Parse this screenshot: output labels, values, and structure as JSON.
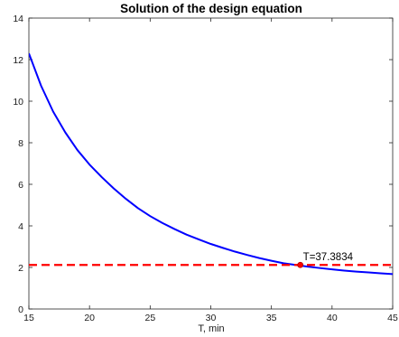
{
  "chart_data": {
    "type": "line",
    "title": "Solution of the design equation",
    "xlabel": "T, min",
    "ylabel": "",
    "xlim": [
      15,
      45
    ],
    "ylim": [
      0,
      14
    ],
    "xticks": [
      "15",
      "20",
      "25",
      "30",
      "35",
      "40",
      "45"
    ],
    "yticks": [
      "0",
      "2",
      "4",
      "6",
      "8",
      "10",
      "12",
      "14"
    ],
    "grid": false,
    "series": [
      {
        "color": "#0000ff",
        "style": "solid",
        "x": [
          15,
          16,
          17,
          18,
          19,
          20,
          21,
          22,
          23,
          24,
          25,
          26,
          27,
          28,
          29,
          30,
          31,
          32,
          33,
          34,
          35,
          36,
          37,
          38,
          39,
          40,
          41,
          42,
          43,
          44,
          45
        ],
        "y": [
          12.3,
          10.75,
          9.5,
          8.5,
          7.65,
          6.95,
          6.35,
          5.8,
          5.3,
          4.85,
          4.47,
          4.14,
          3.85,
          3.58,
          3.35,
          3.13,
          2.94,
          2.76,
          2.6,
          2.45,
          2.32,
          2.2,
          2.12,
          2.04,
          1.97,
          1.91,
          1.85,
          1.8,
          1.76,
          1.72,
          1.68
        ]
      },
      {
        "color": "#ff0000",
        "style": "dashed",
        "x": [
          15,
          45
        ],
        "y": [
          2.12,
          2.12
        ]
      }
    ],
    "marker": {
      "x": 37.3834,
      "y": 2.12,
      "color": "#ff0000",
      "label": "T=37.3834"
    }
  }
}
